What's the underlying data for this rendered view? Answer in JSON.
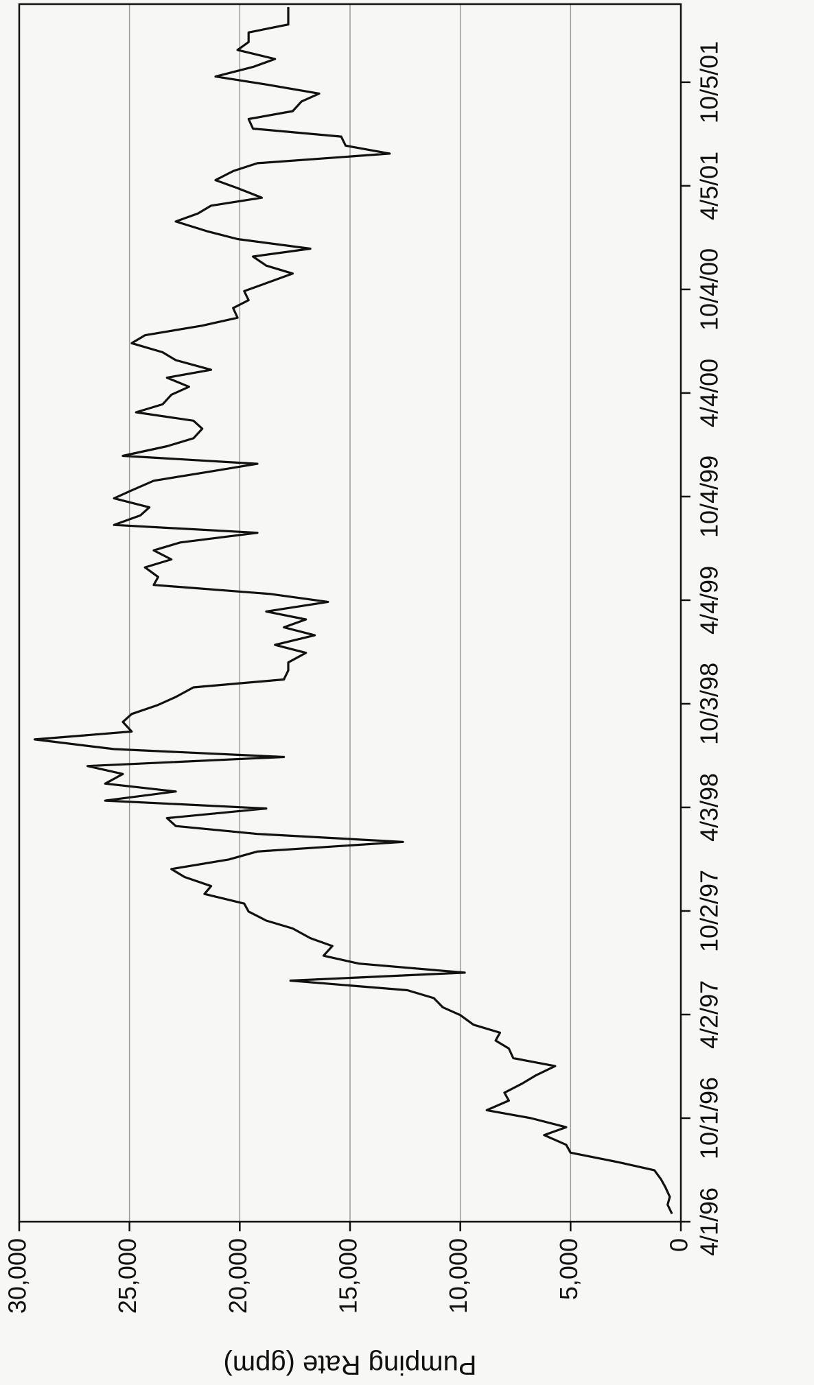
{
  "chart_data": {
    "type": "line",
    "y_axis_label": "Pumping Rate (gpm)",
    "x": [
      "1996-04-15",
      "1996-05-01",
      "1996-05-15",
      "1996-06-01",
      "1996-06-15",
      "1996-07-01",
      "1996-07-15",
      "1996-08-01",
      "1996-08-15",
      "1996-09-01",
      "1996-09-15",
      "1996-10-01",
      "1996-10-15",
      "1996-11-01",
      "1996-11-15",
      "1996-12-01",
      "1996-12-15",
      "1997-01-01",
      "1997-01-15",
      "1997-02-01",
      "1997-02-15",
      "1997-03-01",
      "1997-03-15",
      "1997-04-01",
      "1997-04-15",
      "1997-05-01",
      "1997-05-15",
      "1997-06-01",
      "1997-06-15",
      "1997-07-01",
      "1997-07-15",
      "1997-08-01",
      "1997-08-15",
      "1997-09-01",
      "1997-09-15",
      "1997-10-01",
      "1997-10-15",
      "1997-11-01",
      "1997-11-15",
      "1997-12-01",
      "1997-12-15",
      "1998-01-01",
      "1998-01-15",
      "1998-02-01",
      "1998-02-15",
      "1998-03-01",
      "1998-03-15",
      "1998-04-01",
      "1998-04-15",
      "1998-05-01",
      "1998-05-15",
      "1998-06-01",
      "1998-06-15",
      "1998-07-01",
      "1998-07-15",
      "1998-08-01",
      "1998-08-15",
      "1998-09-01",
      "1998-09-15",
      "1998-10-01",
      "1998-10-15",
      "1998-11-01",
      "1998-11-15",
      "1998-12-01",
      "1998-12-15",
      "1999-01-01",
      "1999-01-15",
      "1999-02-01",
      "1999-02-15",
      "1999-03-01",
      "1999-03-15",
      "1999-04-01",
      "1999-04-15",
      "1999-05-01",
      "1999-05-15",
      "1999-06-01",
      "1999-06-15",
      "1999-07-01",
      "1999-07-15",
      "1999-08-01",
      "1999-08-15",
      "1999-09-01",
      "1999-09-15",
      "1999-10-01",
      "1999-10-15",
      "1999-11-01",
      "1999-11-15",
      "1999-12-01",
      "1999-12-15",
      "2000-01-01",
      "2000-01-15",
      "2000-02-01",
      "2000-02-15",
      "2000-03-01",
      "2000-03-15",
      "2000-04-01",
      "2000-04-15",
      "2000-05-01",
      "2000-05-15",
      "2000-06-01",
      "2000-06-15",
      "2000-07-01",
      "2000-07-15",
      "2000-08-01",
      "2000-08-15",
      "2000-09-01",
      "2000-09-15",
      "2000-10-01",
      "2000-10-15",
      "2000-11-01",
      "2000-11-15",
      "2000-12-01",
      "2000-12-15",
      "2001-01-01",
      "2001-01-15",
      "2001-02-01",
      "2001-02-15",
      "2001-03-01",
      "2001-03-15",
      "2001-04-01",
      "2001-04-15",
      "2001-05-01",
      "2001-05-15",
      "2001-06-01",
      "2001-06-15",
      "2001-07-01",
      "2001-07-15",
      "2001-08-01",
      "2001-08-15",
      "2001-09-01",
      "2001-09-15",
      "2001-10-01",
      "2001-10-15",
      "2001-11-01",
      "2001-11-15",
      "2001-12-01",
      "2001-12-15",
      "2002-01-01",
      "2002-01-15",
      "2002-02-01",
      "2002-02-15"
    ],
    "series": [
      {
        "name": "Pumping Rate",
        "color": "#111111",
        "values": [
          400,
          600,
          500,
          700,
          900,
          1200,
          2800,
          5000,
          5200,
          6200,
          5200,
          6800,
          8800,
          7800,
          8000,
          7200,
          6600,
          5700,
          7600,
          7800,
          8400,
          8200,
          9400,
          10000,
          10800,
          11200,
          12400,
          17700,
          9800,
          14600,
          16200,
          15800,
          16800,
          17600,
          18800,
          19600,
          19800,
          21600,
          21300,
          22500,
          23100,
          20500,
          19200,
          12600,
          19200,
          22900,
          23300,
          18800,
          26100,
          22900,
          26100,
          25300,
          26900,
          18000,
          25700,
          29300,
          24900,
          25300,
          24900,
          23700,
          22900,
          22100,
          18000,
          17800,
          17800,
          17000,
          18400,
          16600,
          18000,
          17000,
          18800,
          16000,
          18600,
          23900,
          23700,
          24300,
          23100,
          23900,
          22700,
          19200,
          25700,
          24500,
          24100,
          25700,
          24900,
          23900,
          21700,
          19200,
          25300,
          23300,
          22100,
          21700,
          22100,
          24700,
          23500,
          23100,
          22300,
          23300,
          21300,
          22900,
          23500,
          24900,
          24300,
          21700,
          20100,
          20300,
          19600,
          19800,
          18800,
          17600,
          18800,
          19400,
          16800,
          20100,
          21500,
          22900,
          21900,
          21300,
          19000,
          20100,
          21100,
          20300,
          19200,
          13200,
          15200,
          15400,
          19400,
          19600,
          17600,
          17200,
          16400,
          18800,
          21100,
          19400,
          18400,
          20100,
          19600,
          19600,
          17800,
          17800,
          17800
        ]
      }
    ],
    "xlim": [
      "1996-04-01",
      "2002-02-20"
    ],
    "xticks": [
      {
        "value": "1996-04-01",
        "label": "4/1/96"
      },
      {
        "value": "1996-10-01",
        "label": "10/1/96"
      },
      {
        "value": "1997-04-02",
        "label": "4/2/97"
      },
      {
        "value": "1997-10-02",
        "label": "10/2/97"
      },
      {
        "value": "1998-04-03",
        "label": "4/3/98"
      },
      {
        "value": "1998-10-03",
        "label": "10/3/98"
      },
      {
        "value": "1999-04-04",
        "label": "4/4/99"
      },
      {
        "value": "1999-10-04",
        "label": "10/4/99"
      },
      {
        "value": "2000-04-04",
        "label": "4/4/00"
      },
      {
        "value": "2000-10-04",
        "label": "10/4/00"
      },
      {
        "value": "2001-04-05",
        "label": "4/5/01"
      },
      {
        "value": "2001-10-05",
        "label": "10/5/01"
      }
    ],
    "ylim": [
      0,
      30000
    ],
    "yticks": [
      0,
      {
        "value": 5000,
        "label": "5,000"
      },
      {
        "value": 10000,
        "label": "10,000"
      },
      {
        "value": 15000,
        "label": "15,000"
      },
      {
        "value": 20000,
        "label": "20,000"
      },
      {
        "value": 25000,
        "label": "25,000"
      },
      {
        "value": 30000,
        "label": "30,000"
      }
    ],
    "grid": true,
    "rotation": -90
  }
}
